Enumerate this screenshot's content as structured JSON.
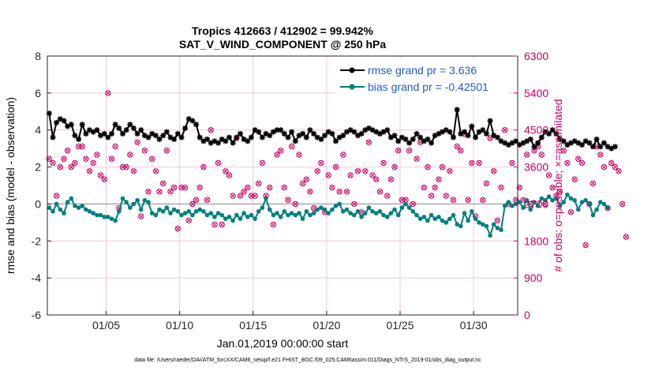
{
  "chart_data": {
    "type": "line",
    "title": "Tropics 412663 / 412902 = 99.942%",
    "subtitle": "SAT_V_WIND_COMPONENT @ 250 hPa",
    "xlabel": "Jan.01,2019 00:00:00 start",
    "ylabel": "rmse and bias (model - observation)",
    "y2label": "# of obs: o=possible; ×=assimilated",
    "footer": "data file: /Users/raeder/DAI/ATM_forcXX/CAM6_setup/f.e21.FHIST_BGC.f09_025.CAM6assim.011/Diags_NTrS_2019-01/obs_diag_output.nc",
    "xlim": [
      1,
      33
    ],
    "ylim": [
      -6,
      8
    ],
    "y2lim": [
      0,
      6300
    ],
    "xticks": [
      5,
      10,
      15,
      20,
      25,
      30
    ],
    "xtick_labels": [
      "01/05",
      "01/10",
      "01/15",
      "01/20",
      "01/25",
      "01/30"
    ],
    "yticks": [
      -6,
      -4,
      -2,
      0,
      2,
      4,
      6,
      8
    ],
    "ytick_labels": [
      "-6",
      "-4",
      "-2",
      "0",
      "2",
      "4",
      "6",
      "8"
    ],
    "y2ticks": [
      0,
      900,
      1800,
      2700,
      3600,
      4500,
      5400,
      6300
    ],
    "y2tick_labels": [
      "0",
      "900",
      "1800",
      "2700",
      "3600",
      "4500",
      "5400",
      "6300"
    ],
    "legend": [
      "rmse grand pr = 3.636",
      "bias grand pr = -0.42501"
    ],
    "legend_location": "top-right",
    "colors": {
      "rmse": "#000000",
      "bias": "#008080",
      "obs": "#cc0066",
      "zero_line": "#aaaaaa"
    },
    "series": [
      {
        "name": "rmse",
        "x_start": 1.125,
        "x_step": 0.25,
        "values": [
          4.9,
          3.6,
          4.4,
          4.6,
          4.5,
          4.2,
          4.3,
          3.7,
          3.5,
          4.3,
          3.8,
          4.0,
          3.9,
          4.0,
          3.7,
          3.8,
          3.6,
          3.8,
          4.3,
          4.1,
          3.8,
          4.0,
          4.3,
          4.1,
          3.8,
          4.0,
          3.7,
          3.6,
          3.8,
          3.7,
          3.5,
          3.7,
          3.9,
          3.6,
          3.5,
          3.8,
          3.6,
          4.1,
          4.6,
          4.5,
          4.3,
          3.6,
          3.4,
          3.5,
          3.3,
          3.4,
          3.3,
          3.5,
          3.4,
          3.6,
          3.3,
          3.6,
          3.8,
          3.5,
          3.4,
          3.6,
          4.0,
          3.9,
          3.6,
          3.8,
          3.7,
          3.9,
          4.0,
          4.0,
          3.8,
          3.6,
          3.9,
          3.4,
          3.7,
          3.8,
          3.6,
          4.0,
          3.8,
          3.6,
          3.5,
          3.7,
          3.9,
          3.8,
          3.4,
          3.6,
          3.7,
          3.9,
          4.0,
          3.9,
          3.7,
          3.8,
          4.0,
          4.1,
          4.0,
          3.9,
          3.8,
          3.9,
          4.0,
          3.6,
          3.7,
          3.4,
          3.6,
          3.5,
          3.3,
          3.5,
          3.8,
          3.6,
          3.4,
          3.5,
          3.3,
          3.7,
          3.8,
          3.9,
          4.0,
          3.9,
          3.6,
          5.1,
          3.8,
          3.9,
          3.7,
          4.2,
          3.6,
          3.9,
          4.0,
          3.8,
          4.5,
          3.7,
          3.6,
          3.4,
          3.3,
          3.2,
          3.3,
          3.4,
          3.2,
          3.3,
          3.4,
          3.5,
          3.1,
          3.3,
          3.6,
          3.9,
          3.8,
          4.0,
          3.8,
          3.5,
          3.4,
          3.2,
          3.3,
          3.4,
          3.3,
          3.2,
          3.4,
          3.3,
          3.1,
          3.5,
          3.1,
          3.3,
          3.1,
          3.0,
          3.1
        ]
      },
      {
        "name": "bias",
        "x_start": 1.125,
        "x_step": 0.25,
        "values": [
          -0.2,
          -0.4,
          0.0,
          -0.3,
          -0.5,
          0.1,
          0.3,
          -0.1,
          -0.2,
          -0.1,
          -0.3,
          -0.4,
          -0.5,
          -0.6,
          -0.6,
          -0.7,
          -0.7,
          -0.8,
          -0.9,
          -0.4,
          0.3,
          0.1,
          -0.2,
          0.0,
          0.2,
          -0.3,
          0.2,
          0.1,
          -0.5,
          -0.6,
          -0.3,
          -0.4,
          -0.2,
          -0.5,
          -0.3,
          -0.4,
          -0.6,
          -0.5,
          -0.4,
          -0.6,
          -0.4,
          -0.3,
          -0.4,
          -0.6,
          -0.5,
          -0.7,
          -0.5,
          -0.6,
          -0.8,
          -0.7,
          -0.9,
          -0.6,
          -0.8,
          -0.5,
          -0.7,
          -0.6,
          -0.8,
          -0.4,
          -0.2,
          0.3,
          -0.3,
          -0.6,
          -0.5,
          -0.7,
          -0.4,
          -0.6,
          -0.5,
          -0.6,
          -0.5,
          -0.8,
          -0.4,
          -0.6,
          -0.5,
          -0.3,
          -0.2,
          -0.3,
          -0.5,
          -0.3,
          -0.1,
          0.0,
          -0.4,
          -0.3,
          -0.5,
          -0.6,
          -0.4,
          -0.7,
          -0.5,
          -0.2,
          -0.4,
          -0.5,
          -0.4,
          -0.6,
          -0.7,
          -0.5,
          -0.3,
          -0.6,
          -0.2,
          0.0,
          -0.2,
          -0.4,
          -0.6,
          -0.8,
          -0.7,
          -0.9,
          -0.6,
          -0.8,
          -0.7,
          -0.9,
          -1.0,
          -0.8,
          -0.6,
          -1.1,
          -1.2,
          -0.5,
          -0.9,
          -0.4,
          -0.8,
          -1.0,
          -1.1,
          -1.2,
          -1.7,
          -1.1,
          -1.3,
          -1.4,
          -0.1,
          0.1,
          -0.1,
          0.0,
          0.1,
          -0.2,
          0.2,
          -0.3,
          0.1,
          -0.1,
          0.3,
          0.2,
          0.4,
          0.2,
          0.3,
          -0.1,
          0.1,
          0.5,
          0.3,
          0.2,
          -0.3,
          0.1,
          0.2,
          0.0,
          -0.6,
          -0.3,
          0.1,
          0.0,
          -0.2
        ]
      },
      {
        "name": "obs_count",
        "axis": "right",
        "x_start": 1.125,
        "x_step": 0.25,
        "values": [
          3800,
          3700,
          2900,
          3600,
          3800,
          4000,
          3600,
          3700,
          4100,
          4100,
          3800,
          3500,
          3700,
          3900,
          3400,
          3300,
          5400,
          3800,
          4100,
          2600,
          3600,
          3600,
          3900,
          3500,
          4200,
          2400,
          4000,
          3000,
          3800,
          3500,
          3000,
          3200,
          4000,
          3000,
          3100,
          2100,
          3100,
          3100,
          2300,
          2700,
          2800,
          3100,
          3600,
          2800,
          4500,
          2200,
          3700,
          2200,
          3500,
          3400,
          2900,
          4300,
          2900,
          3000,
          3100,
          2900,
          2900,
          3200,
          3700,
          2900,
          3100,
          2200,
          3900,
          4000,
          3100,
          2800,
          4100,
          2700,
          3900,
          3200,
          3300,
          3000,
          2600,
          3500,
          3700,
          2500,
          3400,
          3100,
          3600,
          3000,
          3900,
          3000,
          3400,
          2700,
          3500,
          2500,
          3500,
          4200,
          3400,
          3300,
          3000,
          3700,
          2900,
          3300,
          3600,
          4000,
          2800,
          2800,
          4000,
          2700,
          3800,
          4200,
          3100,
          3600,
          2900,
          3100,
          3300,
          3600,
          2900,
          3500,
          2800,
          4100,
          4000,
          4400,
          2800,
          3700,
          2400,
          3700,
          2800,
          3200,
          4300,
          3500,
          2300,
          3100,
          4500,
          2700,
          3700,
          2800,
          3100,
          2800,
          3900,
          2700,
          4000,
          4100,
          3900,
          2700,
          3400,
          3100,
          2900,
          3000,
          4000,
          3700,
          2500,
          3300,
          3800,
          3700,
          1700,
          2700,
          3200,
          4100,
          3900,
          3600,
          2600,
          3700,
          3600,
          3500,
          2700,
          1900
        ]
      }
    ]
  }
}
